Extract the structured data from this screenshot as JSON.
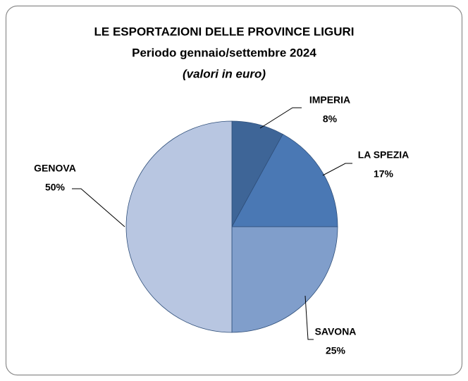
{
  "chart_data": {
    "type": "pie",
    "title": "LE ESPORTAZIONI DELLE PROVINCE LIGURI",
    "subtitle": "Periodo gennaio/settembre 2024",
    "caption": "(valori in euro)",
    "categories": [
      "IMPERIA",
      "LA SPEZIA",
      "SAVONA",
      "GENOVA"
    ],
    "values": [
      8,
      17,
      25,
      50
    ],
    "value_labels": [
      "8%",
      "17%",
      "25%",
      "50%"
    ],
    "colors": [
      "#3e6597",
      "#4a78b4",
      "#809ecb",
      "#b8c6e1"
    ]
  }
}
